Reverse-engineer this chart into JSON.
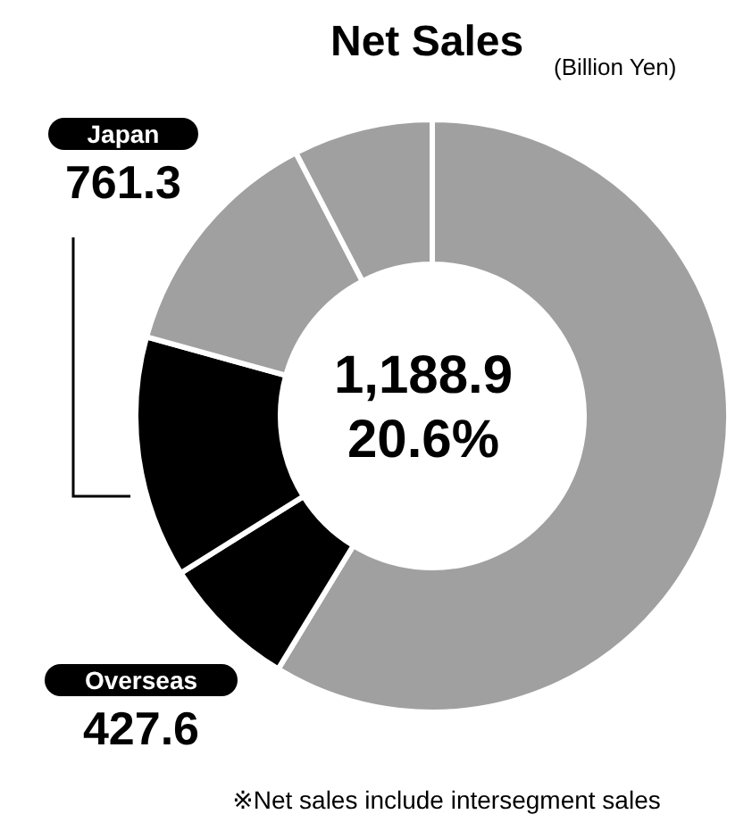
{
  "chart_data": {
    "type": "donut",
    "title": "Net Sales",
    "subtitle": "(Billion Yen)",
    "categories": [
      null,
      "Overseas",
      "Japan",
      null,
      null
    ],
    "values": [
      3388,
      427.6,
      761.3,
      756,
      439
    ],
    "colors": [
      "#a0a0a0",
      "#000000",
      "#000000",
      "#a0a0a0",
      "#a0a0a0"
    ],
    "value_labels": [
      null,
      "427.6",
      "761.3",
      null,
      null
    ],
    "annotations": [
      "1,188.9",
      "20.6%",
      "※Net sales include intersegment sales"
    ]
  }
}
